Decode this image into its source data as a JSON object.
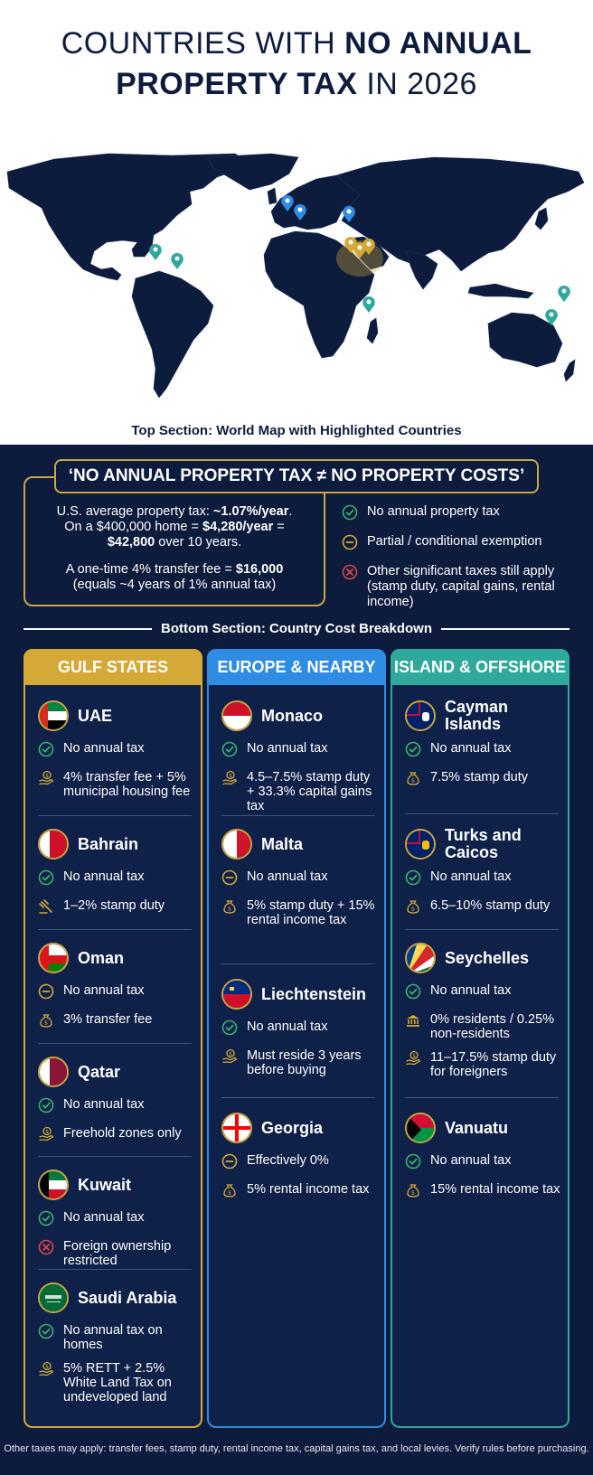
{
  "title": {
    "line1_light": "COUNTRIES WITH ",
    "line1_bold": "NO ANNUAL",
    "line2_bold": "PROPERTY TAX",
    "line2_light": " IN 2026"
  },
  "map_caption": "Top Section: World Map with Highlighted Countries",
  "callout": {
    "heading": "‘NO ANNUAL PROPERTY TAX ≠ NO PROPERTY COSTS’",
    "p1_a": "U.S. average property tax: ",
    "p1_b": "~1.07%/year",
    "p1_c": ".",
    "p1_d": "On a $400,000 home = ",
    "p1_e": "$4,280/year",
    "p1_f": " =",
    "p1_g": "$42,800",
    "p1_h": " over 10 years.",
    "p2_a": "A one-time 4% transfer fee = ",
    "p2_b": "$16,000",
    "p2_c": "(equals ~4 years of 1% annual tax)"
  },
  "legend": [
    {
      "icon": "check-icon",
      "text": "No annual property tax"
    },
    {
      "icon": "minus-icon",
      "text": "Partial / conditional exemption"
    },
    {
      "icon": "x-icon",
      "text": "Other significant taxes still apply (stamp duty, capital gains, rental income)"
    }
  ],
  "section_label": "Bottom Section: Country Cost Breakdown",
  "columns": {
    "gulf": {
      "heading": "GULF STATES",
      "countries": [
        {
          "name": "UAE",
          "rows": [
            {
              "icon": "check-icon",
              "text": "No annual tax"
            },
            {
              "icon": "money-hand-icon",
              "text": "4% transfer fee + 5% municipal housing fee"
            }
          ]
        },
        {
          "name": "Bahrain",
          "rows": [
            {
              "icon": "check-icon",
              "text": "No annual tax"
            },
            {
              "icon": "gavel-icon",
              "text": "1–2% stamp duty"
            }
          ]
        },
        {
          "name": "Oman",
          "rows": [
            {
              "icon": "minus-icon",
              "text": "No annual tax"
            },
            {
              "icon": "money-bag-icon",
              "text": "3% transfer fee"
            }
          ]
        },
        {
          "name": "Qatar",
          "rows": [
            {
              "icon": "check-icon",
              "text": "No annual tax"
            },
            {
              "icon": "money-hand-icon",
              "text": "Freehold zones only"
            }
          ]
        },
        {
          "name": "Kuwait",
          "rows": [
            {
              "icon": "check-icon",
              "text": "No annual tax"
            },
            {
              "icon": "x-icon",
              "text": "Foreign ownership restricted"
            }
          ]
        },
        {
          "name": "Saudi Arabia",
          "rows": [
            {
              "icon": "check-icon",
              "text": "No annual tax on homes"
            },
            {
              "icon": "money-hand-icon",
              "text": "5% RETT + 2.5% White Land Tax on undeveloped land"
            }
          ]
        }
      ]
    },
    "europe": {
      "heading": "EUROPE & NEARBY",
      "countries": [
        {
          "name": "Monaco",
          "rows": [
            {
              "icon": "check-icon",
              "text": "No annual tax"
            },
            {
              "icon": "money-hand-icon",
              "text": "4.5–7.5% stamp duty + 33.3% capital gains tax"
            }
          ]
        },
        {
          "name": "Malta",
          "rows": [
            {
              "icon": "minus-icon",
              "text": "No annual tax"
            },
            {
              "icon": "money-bag-icon",
              "text": "5% stamp duty + 15% rental income tax"
            }
          ]
        },
        {
          "name": "Liechtenstein",
          "rows": [
            {
              "icon": "check-icon",
              "text": "No annual tax"
            },
            {
              "icon": "money-hand-icon",
              "text": "Must reside 3 years before buying"
            }
          ]
        },
        {
          "name": "Georgia",
          "rows": [
            {
              "icon": "minus-icon",
              "text": "Effectively 0%"
            },
            {
              "icon": "money-bag-icon",
              "text": "5% rental income tax"
            }
          ]
        }
      ]
    },
    "island": {
      "heading": "ISLAND & OFFSHORE",
      "countries": [
        {
          "name": "Cayman Islands",
          "rows": [
            {
              "icon": "check-icon",
              "text": "No annual tax"
            },
            {
              "icon": "money-bag-icon",
              "text": "7.5% stamp duty"
            }
          ]
        },
        {
          "name": "Turks and Caicos",
          "rows": [
            {
              "icon": "check-icon",
              "text": "No annual tax"
            },
            {
              "icon": "money-bag-icon",
              "text": "6.5–10% stamp duty"
            }
          ]
        },
        {
          "name": "Seychelles",
          "rows": [
            {
              "icon": "check-icon",
              "text": "No annual tax"
            },
            {
              "icon": "bank-icon",
              "text": "0% residents / 0.25% non-residents"
            },
            {
              "icon": "money-hand-icon",
              "text": "11–17.5% stamp duty for foreigners"
            }
          ]
        },
        {
          "name": "Vanuatu",
          "rows": [
            {
              "icon": "check-icon",
              "text": "No annual tax"
            },
            {
              "icon": "money-bag-icon",
              "text": "15% rental income tax"
            }
          ]
        }
      ]
    }
  },
  "footer": "Other taxes may apply: transfer fees, stamp duty, rental income tax, capital gains tax, and local levies. Verify rules before purchasing.",
  "colors": {
    "navy": "#0d1b3d",
    "gold": "#d4a937",
    "blue": "#2f8ce3",
    "teal": "#2fa99b",
    "check": "#3bb36b",
    "cross": "#e04646"
  }
}
